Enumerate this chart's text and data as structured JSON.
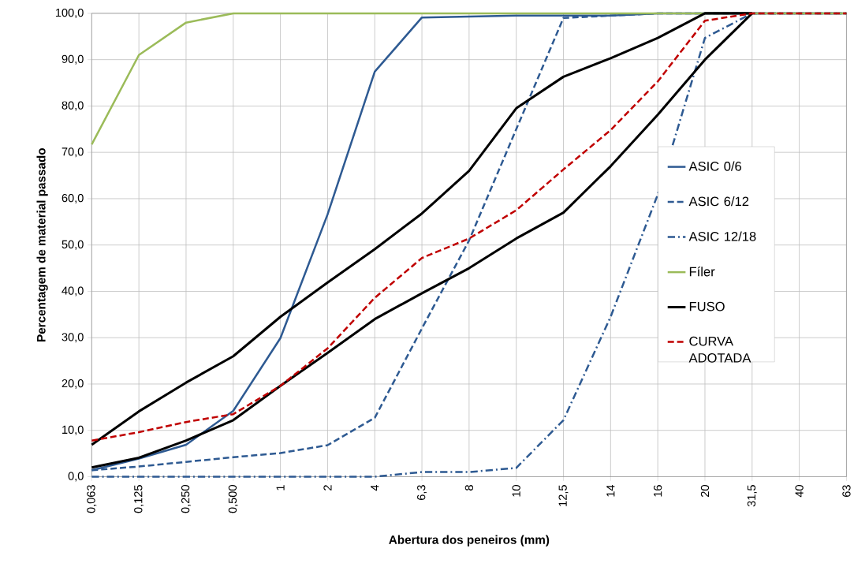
{
  "chart_data": {
    "type": "line",
    "xlabel": "Abertura dos peneiros (mm)",
    "ylabel": "Percentagem de material passado",
    "categories": [
      "0,063",
      "0,125",
      "0,250",
      "0,500",
      "1",
      "2",
      "4",
      "6,3",
      "8",
      "10",
      "12,5",
      "14",
      "16",
      "20",
      "31,5",
      "40",
      "63"
    ],
    "ylim": [
      0,
      100
    ],
    "yticks": [
      {
        "value": 0,
        "label": "0,0"
      },
      {
        "value": 10,
        "label": "10,0"
      },
      {
        "value": 20,
        "label": "20,0"
      },
      {
        "value": 30,
        "label": "30,0"
      },
      {
        "value": 40,
        "label": "40,0"
      },
      {
        "value": 50,
        "label": "50,0"
      },
      {
        "value": 60,
        "label": "60,0"
      },
      {
        "value": 70,
        "label": "70,0"
      },
      {
        "value": 80,
        "label": "80,0"
      },
      {
        "value": 90,
        "label": "90,0"
      },
      {
        "value": 100,
        "label": "100,0"
      }
    ],
    "grid": true,
    "legend": "right",
    "marker": "none",
    "series": [
      {
        "name": "ASIC 0/6",
        "color": "#2e5a92",
        "line_style": "solid",
        "values": [
          1.4,
          3.9,
          6.9,
          14.2,
          29.9,
          56.6,
          87.4,
          99.1,
          99.3,
          99.5,
          99.5,
          99.5,
          100,
          100,
          100,
          100,
          100
        ]
      },
      {
        "name": "ASIC 6/12",
        "color": "#2e5a92",
        "line_style": "dashed",
        "values": [
          1.4,
          2.2,
          3.2,
          4.2,
          5.1,
          6.8,
          12.7,
          32,
          51,
          75,
          99,
          99.5,
          100,
          100,
          100,
          100,
          100
        ]
      },
      {
        "name": "ASIC 12/18",
        "color": "#2e5a92",
        "line_style": "dashdot",
        "values": [
          0,
          0,
          0,
          0,
          0,
          0,
          0,
          1.0,
          1.0,
          1.9,
          12.2,
          34.5,
          60.9,
          94.7,
          100,
          100,
          100
        ]
      },
      {
        "name": "Fíler",
        "color": "#9bbb59",
        "line_style": "solid",
        "values": [
          71.7,
          91,
          98,
          100,
          100,
          100,
          100,
          100,
          100,
          100,
          100,
          100,
          100,
          100,
          100,
          100,
          100
        ]
      },
      {
        "name": "FUSO",
        "color": "#000000",
        "line_style": "solid",
        "values": [
          2.0,
          4.1,
          7.8,
          12.2,
          19.6,
          26.7,
          34,
          39.6,
          45,
          51.4,
          57,
          67,
          78.1,
          90,
          100,
          null,
          null
        ]
      },
      {
        "color": "#000000",
        "line_style": "solid",
        "values": [
          6.9,
          14.1,
          20.3,
          26.0,
          34.5,
          41.9,
          49.1,
          56.8,
          66,
          79.5,
          86.3,
          90.3,
          94.7,
          100,
          100,
          null,
          null
        ]
      },
      {
        "name": "CURVA ADOTADA",
        "color": "#c00000",
        "line_style": "dashed",
        "values": [
          7.8,
          9.6,
          11.8,
          13.5,
          19.6,
          27.7,
          38.6,
          47.2,
          51.4,
          57.5,
          66.3,
          74.8,
          85.3,
          98.4,
          100,
          100,
          100
        ]
      }
    ]
  }
}
